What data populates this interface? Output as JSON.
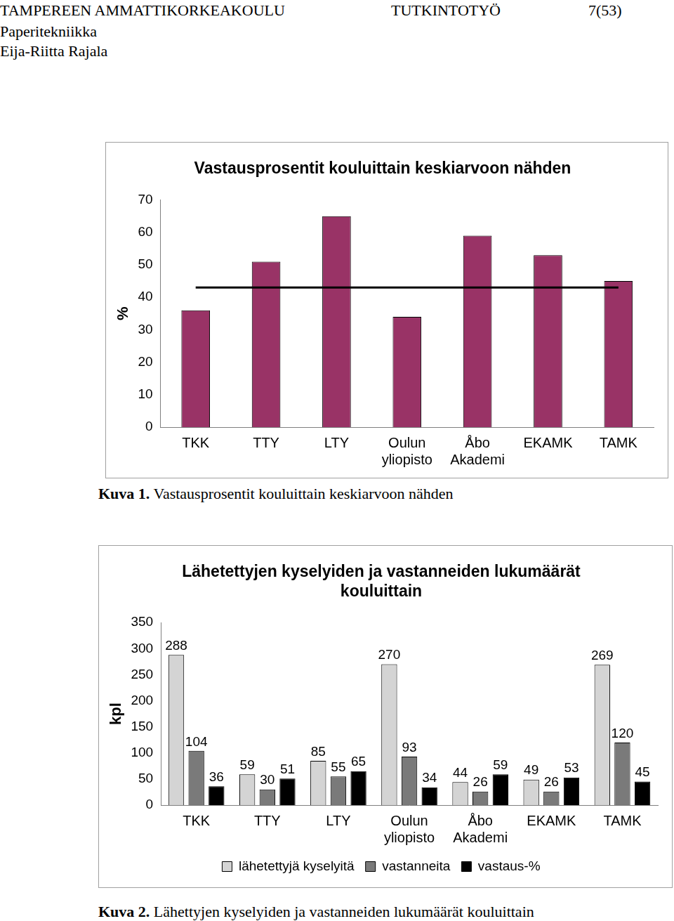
{
  "header": {
    "left": "TAMPEREEN AMMATTIKORKEAKOULU",
    "center": "TUTKINTOTYÖ",
    "page": "7(53)",
    "lines": [
      "Paperitekniikka",
      "Eija-Riitta Rajala"
    ]
  },
  "chart_data": [
    {
      "type": "bar",
      "title": "Vastausprosentit kouluittain keskiarvoon nähden",
      "y_label": "%",
      "categories": [
        "TKK",
        "TTY",
        "LTY",
        "Oulun yliopisto",
        "Åbo Akademi",
        "EKAMK",
        "TAMK"
      ],
      "series": [
        {
          "color": "#993366",
          "values": [
            36,
            51,
            65,
            34,
            59,
            53,
            45
          ]
        },
        {
          "type": "line",
          "color": "#000000",
          "values": [
            43,
            43,
            43,
            43,
            43,
            43,
            43
          ]
        }
      ],
      "ylim": [
        0,
        70
      ],
      "yticks": [
        0,
        10,
        20,
        30,
        40,
        50,
        60,
        70
      ],
      "grid": false
    },
    {
      "type": "bar",
      "title": "Lähetettyjen kyselyiden ja vastanneiden lukumäärät kouluittain",
      "y_label": "kpl",
      "categories": [
        "TKK",
        "TTY",
        "LTY",
        "Oulun yliopisto",
        "Åbo Akademi",
        "EKAMK",
        "TAMK"
      ],
      "series": [
        {
          "name": "lähetettyjä kyselyitä",
          "color": "#d4d4d4",
          "values": [
            288,
            59,
            85,
            270,
            44,
            49,
            269
          ]
        },
        {
          "name": "vastanneita",
          "color": "#7a7a7a",
          "values": [
            104,
            30,
            55,
            93,
            26,
            26,
            120
          ]
        },
        {
          "name": "vastaus-%",
          "color": "#000000",
          "values": [
            36,
            51,
            65,
            34,
            59,
            53,
            45
          ]
        }
      ],
      "ylim": [
        0,
        350
      ],
      "yticks": [
        0,
        50,
        100,
        150,
        200,
        250,
        300,
        350
      ],
      "grid": false,
      "legend": "bottom",
      "data_labels": true
    }
  ],
  "captions": [
    {
      "label": "Kuva 1.",
      "text": "Vastausprosentit kouluittain keskiarvoon nähden"
    },
    {
      "label": "Kuva 2.",
      "text": "Lähettyjen kyselyiden ja vastanneiden lukumäärät kouluittain"
    }
  ]
}
